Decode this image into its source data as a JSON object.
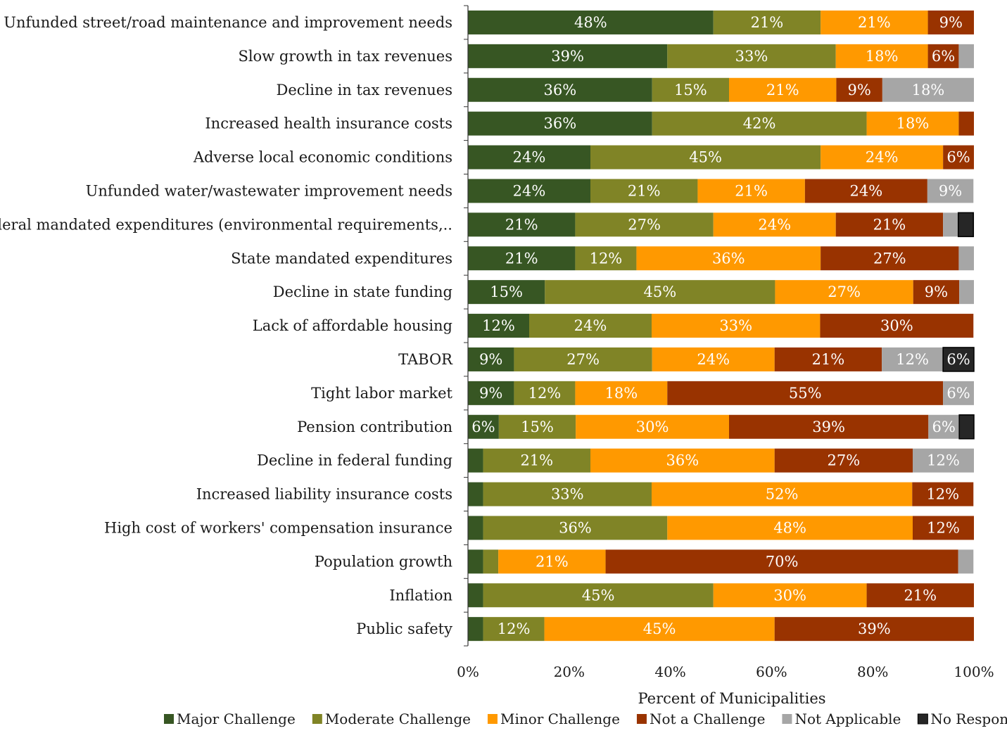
{
  "chart_data": {
    "type": "bar",
    "orientation": "horizontal",
    "stacked": true,
    "xlabel": "Percent of Municipalities",
    "ylabel": "",
    "xlim": [
      0,
      100
    ],
    "x_ticks": [
      "0%",
      "20%",
      "40%",
      "60%",
      "80%",
      "100%"
    ],
    "grid": false,
    "legend_position": "bottom",
    "categories": [
      "Unfunded street/road maintenance and improvement needs",
      "Slow growth in tax revenues",
      "Decline in tax revenues",
      "Increased health insurance costs",
      "Adverse local economic conditions",
      "Unfunded water/wastewater improvement needs",
      "Federal mandated expenditures (environmental requirements,..",
      "State mandated expenditures",
      "Decline in state funding",
      "Lack of affordable housing",
      "TABOR",
      "Tight labor market",
      "Pension contribution",
      "Decline in federal funding",
      "Increased liability insurance costs",
      "High cost of  workers' compensation insurance",
      "Population growth",
      "Inflation",
      "Public safety"
    ],
    "series": [
      {
        "name": "Major Challenge",
        "color": "#375623",
        "values": [
          48.5,
          39.4,
          36.4,
          36.4,
          24.2,
          24.2,
          21.2,
          21.2,
          15.2,
          12.1,
          9.1,
          9.1,
          6.1,
          3.0,
          3.0,
          3.0,
          3.0,
          3.0,
          3.0
        ],
        "labels": [
          "48%",
          "39%",
          "36%",
          "36%",
          "24%",
          "24%",
          "21%",
          "21%",
          "15%",
          "12%",
          "9%",
          "9%",
          "6%",
          "",
          "",
          "",
          "",
          "",
          ""
        ]
      },
      {
        "name": "Moderate Challenge",
        "color": "#808426",
        "values": [
          21.2,
          33.3,
          15.2,
          42.4,
          45.5,
          21.2,
          27.3,
          12.1,
          45.5,
          24.2,
          27.3,
          12.1,
          15.2,
          21.2,
          33.3,
          36.4,
          3.0,
          45.5,
          12.1
        ],
        "labels": [
          "21%",
          "33%",
          "15%",
          "42%",
          "45%",
          "21%",
          "27%",
          "12%",
          "45%",
          "24%",
          "27%",
          "12%",
          "15%",
          "21%",
          "33%",
          "36%",
          "",
          "45%",
          "12%"
        ]
      },
      {
        "name": "Minor Challenge",
        "color": "#FF9900",
        "values": [
          21.2,
          18.2,
          21.2,
          18.2,
          24.2,
          21.2,
          24.2,
          36.4,
          27.3,
          33.3,
          24.2,
          18.2,
          30.3,
          36.4,
          51.5,
          48.5,
          21.2,
          30.3,
          45.5
        ],
        "labels": [
          "21%",
          "18%",
          "21%",
          "18%",
          "24%",
          "21%",
          "24%",
          "36%",
          "27%",
          "33%",
          "24%",
          "18%",
          "30%",
          "36%",
          "52%",
          "48%",
          "21%",
          "30%",
          "45%"
        ]
      },
      {
        "name": "Not a Challenge",
        "color": "#993300",
        "values": [
          9.1,
          6.1,
          9.1,
          3.0,
          6.1,
          24.2,
          21.2,
          27.3,
          9.1,
          30.3,
          21.2,
          54.5,
          39.4,
          27.3,
          12.1,
          12.1,
          69.7,
          21.2,
          39.4
        ],
        "labels": [
          "9%",
          "6%",
          "9%",
          "",
          "6%",
          "24%",
          "21%",
          "27%",
          "9%",
          "30%",
          "21%",
          "55%",
          "39%",
          "27%",
          "12%",
          "12%",
          "70%",
          "21%",
          "39%"
        ]
      },
      {
        "name": "Not Applicable",
        "color": "#A6A6A6",
        "values": [
          0,
          3.0,
          18.2,
          0,
          0,
          9.1,
          3.0,
          3.0,
          3.0,
          0,
          12.1,
          6.1,
          6.1,
          12.1,
          0,
          0,
          3.0,
          0,
          0
        ],
        "labels": [
          "",
          "",
          "18%",
          "",
          "",
          "9%",
          "",
          "",
          "",
          "",
          "12%",
          "6%",
          "6%",
          "12%",
          "",
          "",
          "",
          "",
          ""
        ]
      },
      {
        "name": "No Response",
        "color": "#262626",
        "values": [
          0,
          0,
          0,
          0,
          0,
          0,
          3.0,
          0,
          0,
          0,
          6.1,
          0,
          3.0,
          0,
          0,
          0,
          0,
          0,
          0
        ],
        "labels": [
          "",
          "",
          "",
          "",
          "",
          "",
          "",
          "",
          "",
          "",
          "6%",
          "",
          "",
          "",
          "",
          "",
          "",
          "",
          ""
        ]
      }
    ]
  }
}
